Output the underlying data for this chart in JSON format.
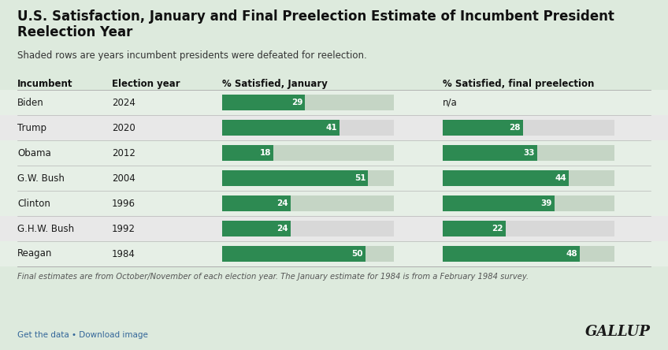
{
  "title_line1": "U.S. Satisfaction, January and Final Preelection Estimate of Incumbent President",
  "title_line2": "Reelection Year",
  "subtitle": "Shaded rows are years incumbent presidents were defeated for reelection.",
  "footnote": "Final estimates are from October/November of each election year. The January estimate for 1984 is from a February 1984 survey.",
  "footer_left": "Get the data • Download image",
  "footer_right": "GALLUP",
  "col_headers": [
    "Incumbent",
    "Election year",
    "% Satisfied, January",
    "% Satisfied, final preelection"
  ],
  "rows": [
    {
      "name": "Biden",
      "year": "2024",
      "january": 29,
      "final": null,
      "defeated": false
    },
    {
      "name": "Trump",
      "year": "2020",
      "january": 41,
      "final": 28,
      "defeated": true
    },
    {
      "name": "Obama",
      "year": "2012",
      "january": 18,
      "final": 33,
      "defeated": false
    },
    {
      "name": "G.W. Bush",
      "year": "2004",
      "january": 51,
      "final": 44,
      "defeated": false
    },
    {
      "name": "Clinton",
      "year": "1996",
      "january": 24,
      "final": 39,
      "defeated": false
    },
    {
      "name": "G.H.W. Bush",
      "year": "1992",
      "january": 24,
      "final": 22,
      "defeated": true
    },
    {
      "name": "Reagan",
      "year": "1984",
      "january": 50,
      "final": 48,
      "defeated": false
    }
  ],
  "bar_max": 60,
  "bar_color_green": "#2d8a52",
  "bar_bg_color_normal": "#c5d5c5",
  "bar_bg_color_defeated": "#d8d8d8",
  "row_color_defeated": "#e8e8e8",
  "row_color_normal": "#e6efe6",
  "bg_color": "#ddeadd",
  "text_color": "#1a1a1a",
  "title_color": "#111111",
  "subtitle_color": "#333333",
  "footnote_color": "#555555",
  "header_text_color": "#111111",
  "footer_link_color": "#336699",
  "gallup_color": "#1a1a1a",
  "divider_color": "#aaaaaa",
  "fig_width": 8.48,
  "fig_height": 4.44,
  "dpi": 100
}
